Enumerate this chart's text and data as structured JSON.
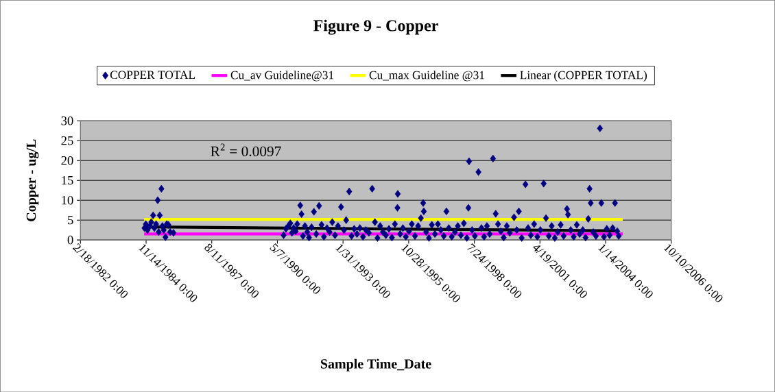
{
  "chart_data": {
    "type": "scatter",
    "title": "Figure 9 - Copper",
    "xlabel": "Sample Time_Date",
    "ylabel": "Copper - ug/L",
    "xlim": [
      "1982-02-18",
      "2006-10-10"
    ],
    "xticks": [
      {
        "value": "1982-02-18",
        "label": "2/18/1982 0:00"
      },
      {
        "value": "1984-11-14",
        "label": "11/14/1984 0:00"
      },
      {
        "value": "1987-08-11",
        "label": "8/11/1987 0:00"
      },
      {
        "value": "1990-05-07",
        "label": "5/7/1990 0:00"
      },
      {
        "value": "1993-01-31",
        "label": "1/31/1993 0:00"
      },
      {
        "value": "1995-10-28",
        "label": "10/28/1995 0:00"
      },
      {
        "value": "1998-07-24",
        "label": "7/24/1998 0:00"
      },
      {
        "value": "2001-04-19",
        "label": "4/19/2001 0:00"
      },
      {
        "value": "2004-01-14",
        "label": "1/14/2004 0:00"
      },
      {
        "value": "2006-10-10",
        "label": "10/10/2006 0:00"
      }
    ],
    "ylim": [
      0,
      30
    ],
    "yticks": [
      0,
      5,
      10,
      15,
      20,
      25,
      30
    ],
    "grid": "y",
    "legend": "top",
    "annotations": [
      "R$^{2}$ = 0.0097"
    ],
    "series": [
      {
        "name": "COPPER TOTAL",
        "color": "#000080",
        "marker": "diamond",
        "x": [
          "1984-10-20",
          "1984-11-10",
          "1984-12-05",
          "1985-01-10",
          "1985-02-01",
          "1985-03-01",
          "1985-03-20",
          "1985-04-15",
          "1985-05-10",
          "1985-05-25",
          "1985-06-10",
          "1985-07-05",
          "1985-07-20",
          "1985-08-10",
          "1985-09-05",
          "1985-09-25",
          "1985-10-20",
          "1985-11-15",
          "1986-01-05",
          "1990-08-10",
          "1990-09-15",
          "1990-10-20",
          "1990-11-20",
          "1990-12-15",
          "1991-01-10",
          "1991-02-10",
          "1991-03-05",
          "1991-04-20",
          "1991-05-10",
          "1991-06-01",
          "1991-07-01",
          "1991-08-05",
          "1991-09-01",
          "1991-10-10",
          "1991-11-15",
          "1991-12-20",
          "1992-02-01",
          "1992-03-10",
          "1992-04-15",
          "1992-06-01",
          "1992-07-10",
          "1992-08-20",
          "1992-10-01",
          "1992-11-15",
          "1993-01-01",
          "1993-02-15",
          "1993-03-20",
          "1993-05-05",
          "1993-06-10",
          "1993-07-20",
          "1993-09-01",
          "1993-10-15",
          "1993-12-01",
          "1994-01-15",
          "1994-03-01",
          "1994-04-20",
          "1994-06-01",
          "1994-07-10",
          "1994-08-20",
          "1994-10-01",
          "1994-11-15",
          "1995-01-01",
          "1995-02-15",
          "1995-04-01",
          "1995-05-10",
          "1995-05-15",
          "1995-06-20",
          "1995-08-01",
          "1995-09-15",
          "1995-11-01",
          "1995-12-15",
          "1996-02-01",
          "1996-03-20",
          "1996-05-01",
          "1996-06-05",
          "1996-06-15",
          "1996-07-20",
          "1996-09-01",
          "1996-10-15",
          "1996-12-01",
          "1997-01-15",
          "1997-03-01",
          "1997-04-15",
          "1997-05-25",
          "1997-07-01",
          "1997-08-15",
          "1997-10-01",
          "1997-11-15",
          "1998-01-01",
          "1998-02-15",
          "1998-04-01",
          "1998-04-25",
          "1998-05-05",
          "1998-06-20",
          "1998-08-01",
          "1998-09-25",
          "1998-11-10",
          "1998-12-20",
          "1999-02-01",
          "1999-03-15",
          "1999-05-05",
          "1999-06-15",
          "1999-07-20",
          "1999-09-01",
          "1999-10-15",
          "1999-12-01",
          "2000-01-15",
          "2000-03-20",
          "2000-05-01",
          "2000-06-01",
          "2000-07-15",
          "2000-09-10",
          "2000-10-20",
          "2000-12-01",
          "2001-01-20",
          "2001-03-10",
          "2001-04-25",
          "2001-06-15",
          "2001-07-20",
          "2001-09-01",
          "2001-10-15",
          "2001-12-01",
          "2002-01-15",
          "2002-03-01",
          "2002-04-15",
          "2002-06-05",
          "2002-06-20",
          "2002-08-01",
          "2002-09-15",
          "2002-11-01",
          "2002-12-15",
          "2003-02-01",
          "2003-03-15",
          "2003-04-25",
          "2003-05-15",
          "2003-06-01",
          "2003-07-10",
          "2003-08-20",
          "2003-10-20",
          "2003-11-10",
          "2003-12-20",
          "2004-02-01",
          "2004-03-15",
          "2004-05-01",
          "2004-06-05",
          "2004-07-10",
          "2004-08-01"
        ],
        "values": [
          3.0,
          4.0,
          2.5,
          3.5,
          4.5,
          6.2,
          3.0,
          4.0,
          10.0,
          2.0,
          6.2,
          12.9,
          3.5,
          2.5,
          0.7,
          4.0,
          3.8,
          2.0,
          1.8,
          1.2,
          2.8,
          3.5,
          4.2,
          1.8,
          3.0,
          2.2,
          4.0,
          8.7,
          6.5,
          1.0,
          3.5,
          2.0,
          0.6,
          3.2,
          7.1,
          1.5,
          8.6,
          3.8,
          0.8,
          3.0,
          2.0,
          4.5,
          1.2,
          3.5,
          8.3,
          2.5,
          5.0,
          12.2,
          1.0,
          2.8,
          1.5,
          3.0,
          0.8,
          2.5,
          1.8,
          12.9,
          4.5,
          0.5,
          3.5,
          2.0,
          1.2,
          2.8,
          0.6,
          4.0,
          8.1,
          11.6,
          1.5,
          3.0,
          0.8,
          2.2,
          4.0,
          1.0,
          3.5,
          5.5,
          9.3,
          7.2,
          2.0,
          0.5,
          3.8,
          1.5,
          4.0,
          2.5,
          1.0,
          7.2,
          3.0,
          0.8,
          2.0,
          3.5,
          1.2,
          4.2,
          0.5,
          8.1,
          19.8,
          2.5,
          1.0,
          17.1,
          3.0,
          0.8,
          3.5,
          1.5,
          20.5,
          6.6,
          4.0,
          2.2,
          0.6,
          3.5,
          1.8,
          5.7,
          2.5,
          7.2,
          0.5,
          14.0,
          3.0,
          1.2,
          4.0,
          0.8,
          2.5,
          14.2,
          5.5,
          1.0,
          3.5,
          0.5,
          2.0,
          3.8,
          1.0,
          7.8,
          6.4,
          2.5,
          0.8,
          3.8,
          1.5,
          2.5,
          0.6,
          5.3,
          12.9,
          9.3,
          2.0,
          1.0,
          28.1,
          9.3,
          0.8,
          2.8,
          1.2,
          3.0,
          9.3,
          2.2,
          1.0
        ]
      },
      {
        "name": "Cu_av Guideline@31",
        "type": "line",
        "color": "#ff00ff",
        "x": [
          "1984-10-15",
          "2004-10-01"
        ],
        "values": [
          1.5,
          1.5
        ]
      },
      {
        "name": "Cu_max Guideline @31",
        "type": "line",
        "color": "#ffff00",
        "x": [
          "1984-10-15",
          "2004-10-01"
        ],
        "values": [
          5.2,
          5.2
        ]
      },
      {
        "name": "Linear (COPPER TOTAL)",
        "type": "line",
        "color": "#000000",
        "x": [
          "1984-10-15",
          "2004-08-01"
        ],
        "values": [
          3.3,
          2.3
        ]
      }
    ]
  }
}
